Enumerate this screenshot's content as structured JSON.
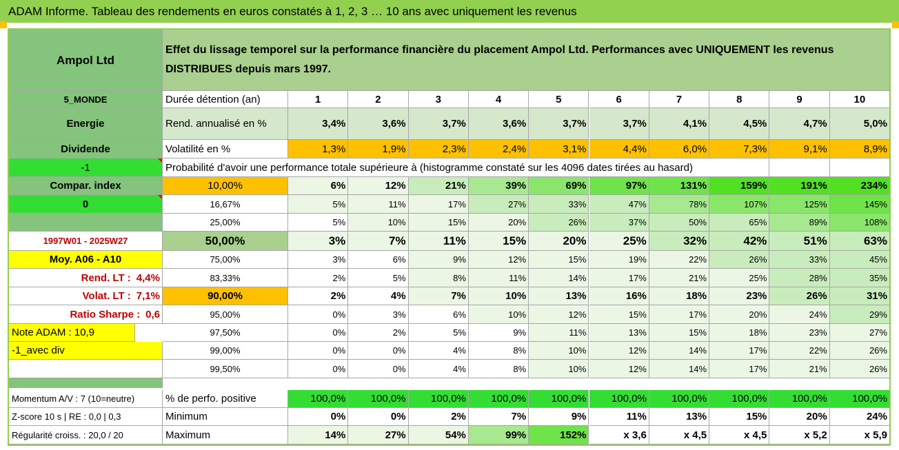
{
  "title": "ADAM Informe. Tableau des rendements en euros constatés à 1, 2, 3 … 10 ans avec uniquement les revenus",
  "company": "Ampol Ltd",
  "header_text": "Effet du lissage temporel sur la performance financière du placement Ampol Ltd. Performances avec UNIQUEMENT les revenus DISTRIBUES depuis mars 1997.",
  "left_labels": {
    "zone": "5_MONDE",
    "sector": "Energie",
    "type": "Dividende",
    "flag1": "-1",
    "compar": "Compar. index",
    "flag2": "0",
    "blank": "",
    "period": "1997W01 - 2025W27",
    "moy": "Moy. A06 - A10",
    "rend_lt_label": "Rend. LT :",
    "rend_lt_value": "4,4%",
    "volat_lt_label": "Volat. LT :",
    "volat_lt_value": "7,1%",
    "sharpe_label": "Ratio Sharpe :",
    "sharpe_value": "0,6",
    "note": "Note ADAM : 10,9",
    "variant": "-1_avec div",
    "momentum": "Momentum A/V : 7 (10=neutre)",
    "zscore": "Z-score 10 s | RE : 0,0 | 0,3",
    "regularite": "Régularité croiss. : 20,0 / 20"
  },
  "row_labels": {
    "duree": "Durée détention (an)",
    "rend": "Rend. annualisé en %",
    "vol": "Volatilité en %",
    "prob": "Probabilité d'avoir une performance totale supérieure à (histogramme constaté sur les 4096 dates tirées au hasard)",
    "positive": "% de perfo. positive",
    "minimum": "Minimum",
    "maximum": "Maximum"
  },
  "years": [
    "1",
    "2",
    "3",
    "4",
    "5",
    "6",
    "7",
    "8",
    "9",
    "10"
  ],
  "rend": [
    "3,4%",
    "3,6%",
    "3,7%",
    "3,6%",
    "3,7%",
    "3,7%",
    "4,1%",
    "4,5%",
    "4,7%",
    "5,0%"
  ],
  "vol": [
    "1,3%",
    "1,9%",
    "2,3%",
    "2,4%",
    "3,1%",
    "4,4%",
    "6,0%",
    "7,3%",
    "9,1%",
    "8,9%"
  ],
  "percentiles": [
    {
      "p": "10,00%",
      "v": [
        "6%",
        "12%",
        "21%",
        "39%",
        "69%",
        "97%",
        "131%",
        "159%",
        "191%",
        "234%"
      ]
    },
    {
      "p": "16,67%",
      "v": [
        "5%",
        "11%",
        "17%",
        "27%",
        "33%",
        "47%",
        "78%",
        "107%",
        "125%",
        "145%"
      ]
    },
    {
      "p": "25,00%",
      "v": [
        "5%",
        "10%",
        "15%",
        "20%",
        "26%",
        "37%",
        "50%",
        "65%",
        "89%",
        "108%"
      ]
    },
    {
      "p": "50,00%",
      "v": [
        "3%",
        "7%",
        "11%",
        "15%",
        "20%",
        "25%",
        "32%",
        "42%",
        "51%",
        "63%"
      ]
    },
    {
      "p": "75,00%",
      "v": [
        "3%",
        "6%",
        "9%",
        "12%",
        "15%",
        "19%",
        "22%",
        "26%",
        "33%",
        "45%"
      ]
    },
    {
      "p": "83,33%",
      "v": [
        "2%",
        "5%",
        "8%",
        "11%",
        "14%",
        "17%",
        "21%",
        "25%",
        "28%",
        "35%"
      ]
    },
    {
      "p": "90,00%",
      "v": [
        "2%",
        "4%",
        "7%",
        "10%",
        "13%",
        "16%",
        "18%",
        "23%",
        "26%",
        "31%"
      ]
    },
    {
      "p": "95,00%",
      "v": [
        "0%",
        "3%",
        "6%",
        "10%",
        "12%",
        "15%",
        "17%",
        "20%",
        "24%",
        "29%"
      ]
    },
    {
      "p": "97,50%",
      "v": [
        "0%",
        "2%",
        "5%",
        "9%",
        "11%",
        "13%",
        "15%",
        "18%",
        "23%",
        "27%"
      ]
    },
    {
      "p": "99,00%",
      "v": [
        "0%",
        "0%",
        "4%",
        "8%",
        "10%",
        "12%",
        "14%",
        "17%",
        "22%",
        "26%"
      ]
    },
    {
      "p": "99,50%",
      "v": [
        "0%",
        "0%",
        "4%",
        "8%",
        "10%",
        "12%",
        "14%",
        "17%",
        "21%",
        "26%"
      ]
    }
  ],
  "positive": [
    "100,0%",
    "100,0%",
    "100,0%",
    "100,0%",
    "100,0%",
    "100,0%",
    "100,0%",
    "100,0%",
    "100,0%",
    "100,0%"
  ],
  "minimum": [
    "0%",
    "0%",
    "2%",
    "7%",
    "9%",
    "11%",
    "13%",
    "15%",
    "20%",
    "24%"
  ],
  "maximum": [
    "14%",
    "27%",
    "54%",
    "99%",
    "152%",
    "x 3,6",
    "x 4,5",
    "x 4,5",
    "x 5,2",
    "x 5,9"
  ]
}
